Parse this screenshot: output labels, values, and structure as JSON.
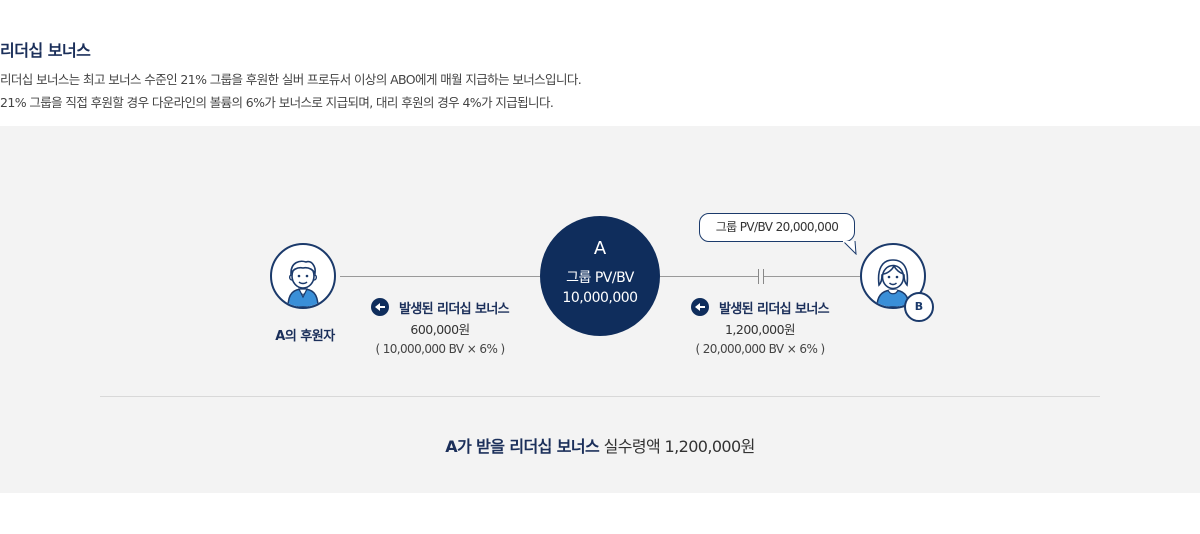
{
  "header": {
    "title": "리더십 보너스",
    "description_line1": "리더십 보너스는 최고 보너스 수준인 21% 그룹을 후원한 실버 프로듀서 이상의 ABO에게 매월 지급하는 보너스입니다.",
    "description_line2": "21% 그룹을 직접 후원할 경우 다운라인의 볼륨의 6%가 보너스로 지급되며, 대리 후원의 경우 4%가 지급됩니다."
  },
  "diagram": {
    "sponsor_label": "A의 후원자",
    "center": {
      "letter": "A",
      "line1": "그룹 PV/BV",
      "line2": "10,000,000"
    },
    "left_bonus": {
      "title": "발생된 리더십 보너스",
      "amount": "600,000원",
      "formula": "( 10,000,000 BV × 6% )"
    },
    "right_bonus": {
      "title": "발생된 리더십 보너스",
      "amount": "1,200,000원",
      "formula": "( 20,000,000 BV × 6% )"
    },
    "bubble_text": "그룹 PV/BV 20,000,000",
    "downline_badge": "B",
    "icons": {
      "sponsor": "male-person-icon",
      "downline": "female-person-icon",
      "arrows": "arrow-left-icon"
    },
    "colors": {
      "navy": "#0f2d5c",
      "panel_bg": "#f3f3f3",
      "accent_blue": "#3a8fd8"
    }
  },
  "summary": {
    "label": "A가 받을 리더십 보너스",
    "value": "실수령액 1,200,000원"
  }
}
